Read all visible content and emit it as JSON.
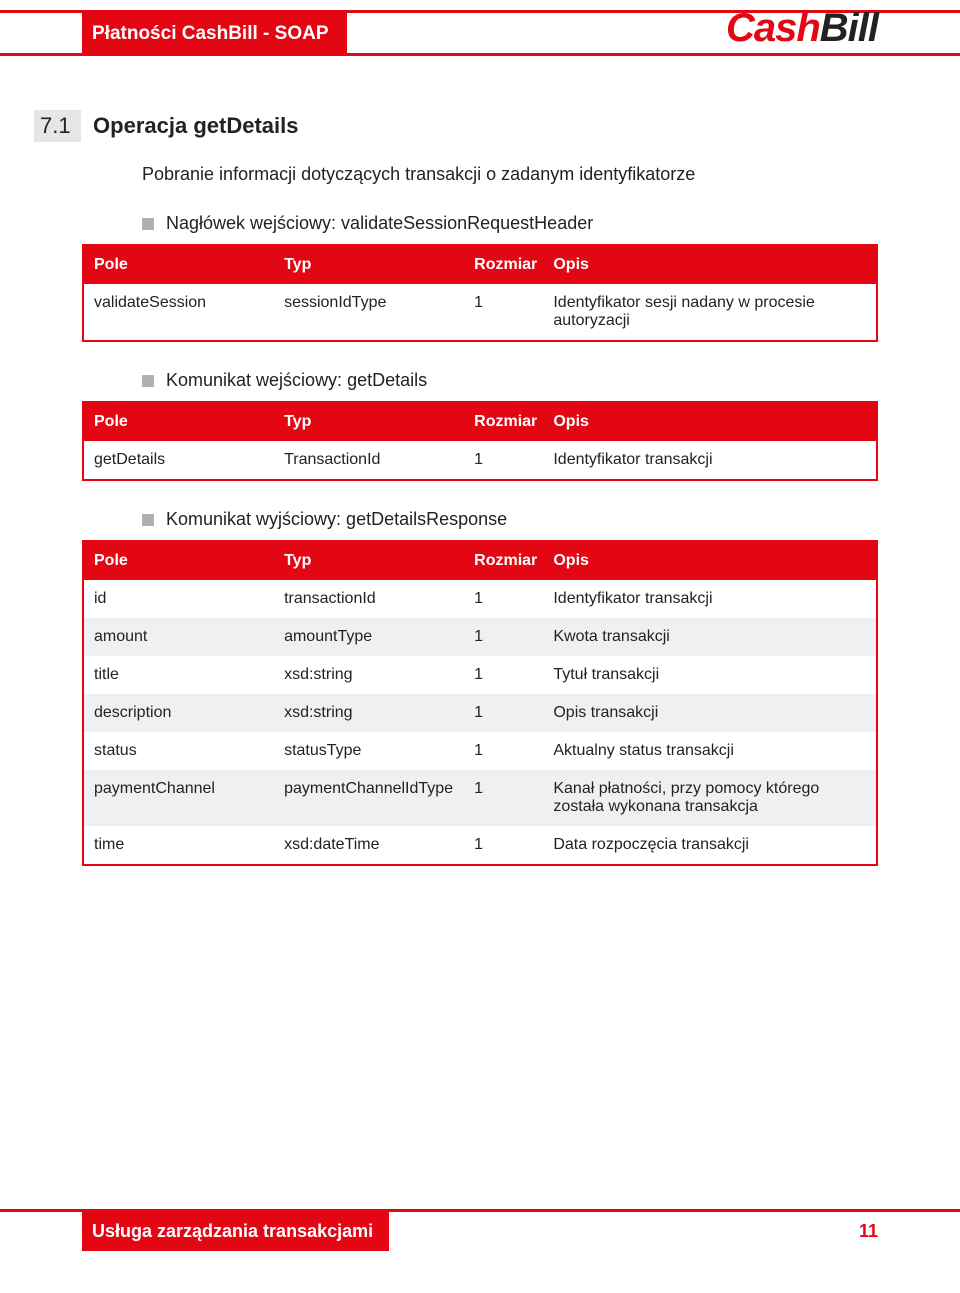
{
  "header": {
    "title": "Płatności CashBill - SOAP",
    "logo_cash": "Cash",
    "logo_bill": "Bill"
  },
  "section": {
    "number": "7.1",
    "title": "Operacja getDetails",
    "description": "Pobranie informacji dotyczących transakcji o zadanym identyfikatorze"
  },
  "bullets": {
    "b1": "Nagłówek wejściowy: validateSessionRequestHeader",
    "b2": "Komunikat wejściowy: getDetails",
    "b3": "Komunikat wyjściowy: getDetailsResponse"
  },
  "table_headers": {
    "pole": "Pole",
    "typ": "Typ",
    "rozmiar": "Rozmiar",
    "opis": "Opis"
  },
  "table1": {
    "r0": {
      "pole": "validateSession",
      "typ": "sessionIdType",
      "rozmiar": "1",
      "opis": "Identyfikator sesji nadany w procesie autoryzacji"
    }
  },
  "table2": {
    "r0": {
      "pole": "getDetails",
      "typ": "TransactionId",
      "rozmiar": "1",
      "opis": "Identyfikator transakcji"
    }
  },
  "table3": {
    "r0": {
      "pole": "id",
      "typ": "transactionId",
      "rozmiar": "1",
      "opis": "Identyfikator transakcji"
    },
    "r1": {
      "pole": "amount",
      "typ": "amountType",
      "rozmiar": "1",
      "opis": "Kwota transakcji"
    },
    "r2": {
      "pole": "title",
      "typ": "xsd:string",
      "rozmiar": "1",
      "opis": "Tytuł transakcji"
    },
    "r3": {
      "pole": "description",
      "typ": "xsd:string",
      "rozmiar": "1",
      "opis": "Opis transakcji"
    },
    "r4": {
      "pole": "status",
      "typ": "statusType",
      "rozmiar": "1",
      "opis": "Aktualny status transakcji"
    },
    "r5": {
      "pole": "paymentChannel",
      "typ": "paymentChannelIdType",
      "rozmiar": "1",
      "opis": "Kanał płatności, przy pomocy którego została wykonana transakcja"
    },
    "r6": {
      "pole": "time",
      "typ": "xsd:dateTime",
      "rozmiar": "1",
      "opis": "Data rozpoczęcia transakcji"
    }
  },
  "footer": {
    "title": "Usługa zarządzania transakcjami",
    "page": "11"
  },
  "colors": {
    "brand_red": "#e30613",
    "header_text": "#ffffff",
    "row_alt_bg": "#f0f0f0",
    "bullet_gray": "#b0b0b0",
    "section_num_bg": "#e6e6e6"
  }
}
